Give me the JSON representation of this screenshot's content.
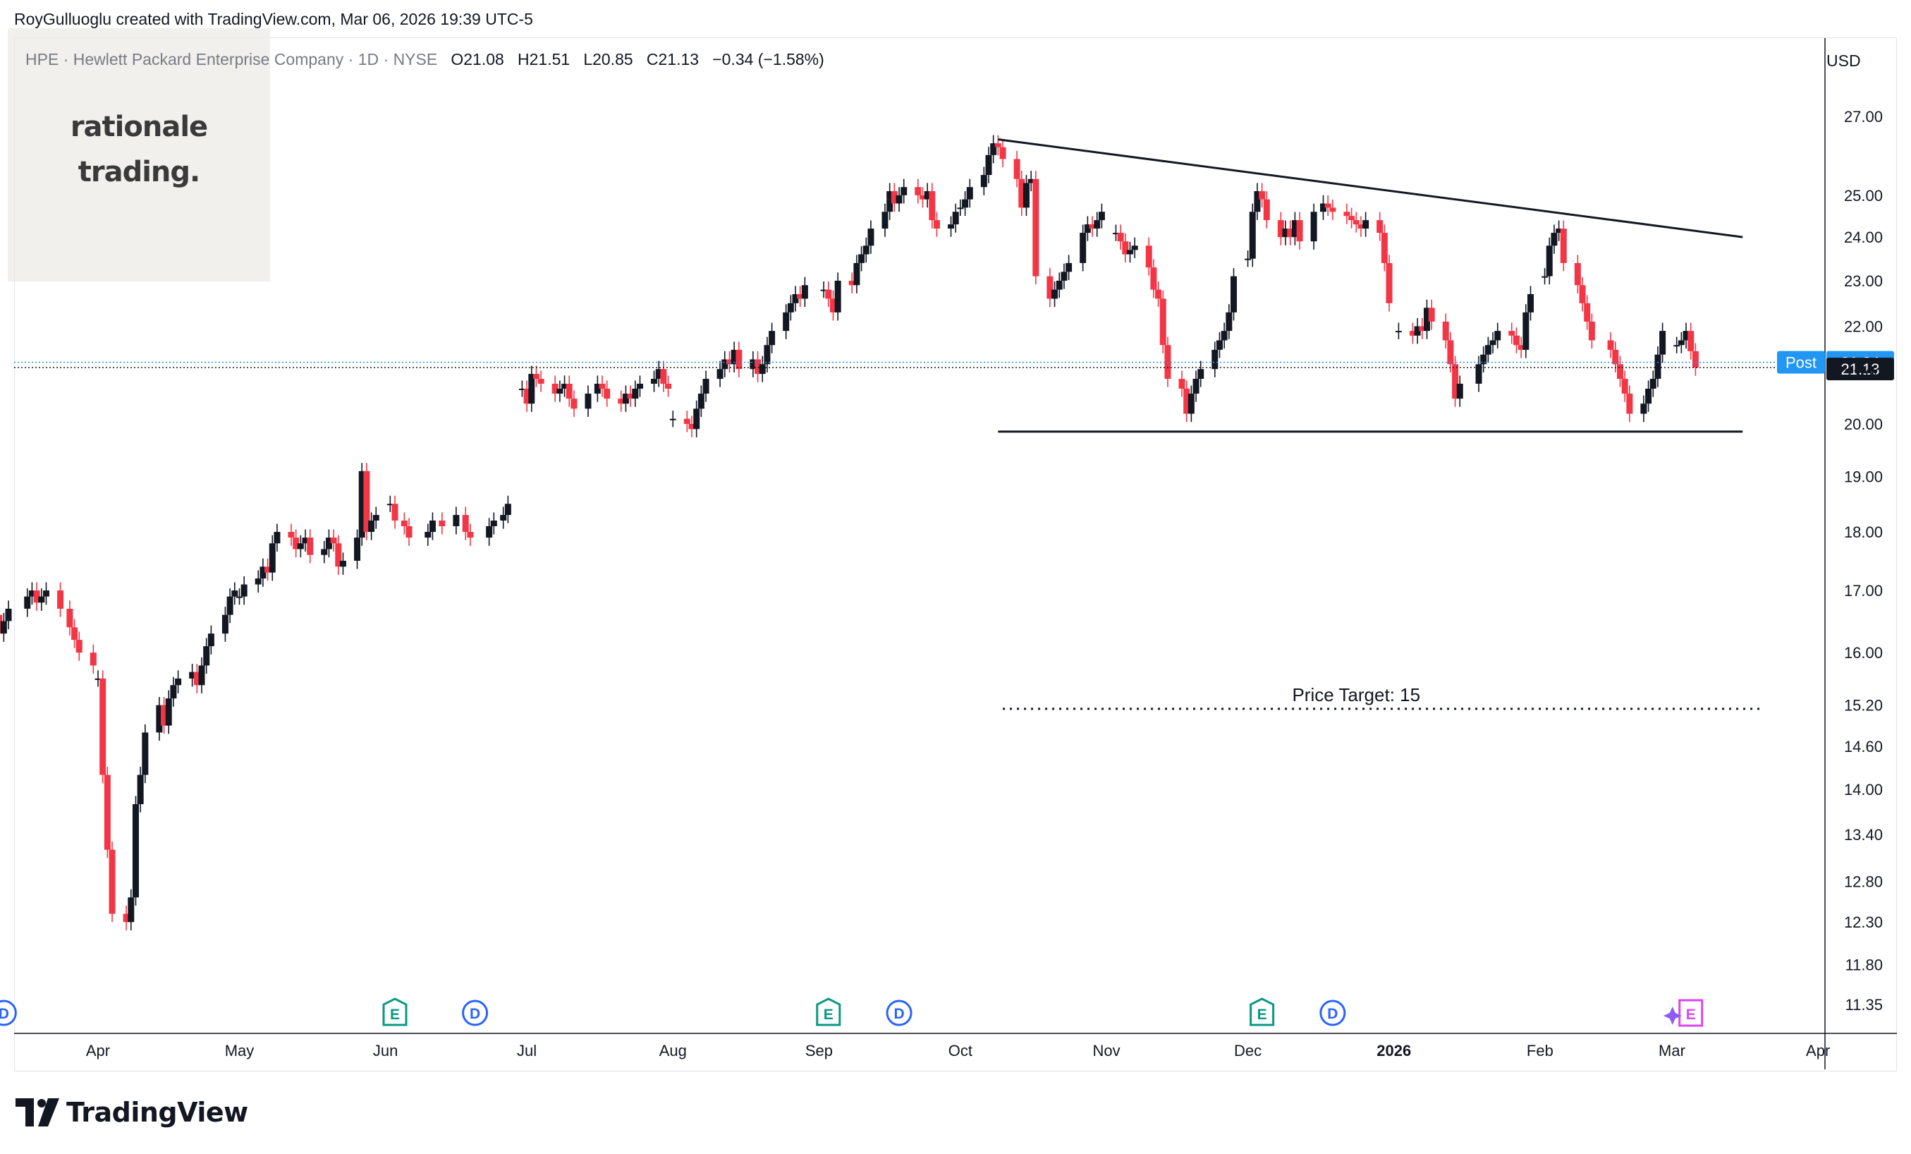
{
  "attribution": "RoyGulluoglu created with TradingView.com, Mar 06, 2026 19:39 UTC-5",
  "watermark": {
    "line1": "rationale",
    "line2": "trading."
  },
  "footer": {
    "brand": "TradingView"
  },
  "colors": {
    "up": "#131722",
    "down": "#f23645",
    "post_label": "#2196f3",
    "last_label": "#131722",
    "grid": "#e0e3eb"
  },
  "chart_data": {
    "type": "candlestick",
    "symbol_line": {
      "symbol": "HPE",
      "name": "Hewlett Packard Enterprise Company",
      "interval": "1D",
      "exchange": "NYSE",
      "open": "O21.08",
      "high": "H21.51",
      "low": "L20.85",
      "close": "C21.13",
      "change": "−0.34 (−1.58%)"
    },
    "currency": "USD",
    "scale": "log",
    "y_ticks": [
      "27.00",
      "25.00",
      "24.00",
      "23.00",
      "22.00",
      "21.00",
      "20.00",
      "19.00",
      "18.00",
      "17.00",
      "16.00",
      "15.20",
      "14.60",
      "14.00",
      "13.40",
      "12.80",
      "12.30",
      "11.80",
      "11.35"
    ],
    "x_ticks": [
      "Apr",
      "May",
      "Jun",
      "Jul",
      "Aug",
      "Sep",
      "Oct",
      "Nov",
      "Dec",
      "2026",
      "Feb",
      "Mar",
      "Apr"
    ],
    "post_label": "Post",
    "post_price": "21.24",
    "last_price": "21.13",
    "annotation": "Price Target: 15",
    "price_target": 15,
    "trendlines": [
      {
        "name": "descending-resistance",
        "start": [
          "2025-10-09",
          26.4
        ],
        "end": [
          "2026-03-16",
          24.0
        ]
      },
      {
        "name": "horizontal-support",
        "start": [
          "2025-10-09",
          19.85
        ],
        "end": [
          "2026-03-16",
          19.85
        ]
      }
    ],
    "event_markers": [
      {
        "type": "D",
        "date": "2025-03-12"
      },
      {
        "type": "E",
        "date": "2025-06-03"
      },
      {
        "type": "D",
        "date": "2025-06-20"
      },
      {
        "type": "E",
        "date": "2025-09-03"
      },
      {
        "type": "D",
        "date": "2025-09-18"
      },
      {
        "type": "E",
        "date": "2025-12-04"
      },
      {
        "type": "D",
        "date": "2025-12-19"
      },
      {
        "type": "E",
        "date": "2026-03-05"
      }
    ],
    "segments": [
      {
        "start": "2025-03-10",
        "end": "2025-03-31",
        "prices": [
          16.6,
          16.3,
          16.5,
          16.7,
          16.9,
          17.0,
          16.8,
          16.9,
          17.0,
          16.7,
          16.4,
          16.2,
          16.0,
          15.8
        ]
      },
      {
        "start": "2025-04-01",
        "end": "2025-04-30",
        "prices": [
          15.6,
          14.2,
          13.2,
          12.4,
          12.3,
          12.6,
          13.8,
          14.2,
          14.8,
          15.2,
          14.9,
          15.3,
          15.5,
          15.6,
          15.7,
          15.5,
          15.8,
          16.1,
          16.3,
          16.6,
          16.9,
          17.0
        ]
      },
      {
        "start": "2025-05-01",
        "end": "2025-05-30",
        "prices": [
          16.9,
          17.1,
          17.2,
          17.4,
          17.3,
          17.8,
          18.0,
          17.9,
          17.7,
          17.8,
          17.9,
          17.6,
          17.7,
          17.9,
          17.8,
          17.4,
          17.5,
          17.9,
          19.1,
          18.0,
          18.2,
          18.3
        ]
      },
      {
        "start": "2025-06-02",
        "end": "2025-06-27",
        "prices": [
          18.5,
          18.2,
          18.1,
          17.9,
          18.0,
          18.2,
          18.1,
          18.3,
          18.0,
          17.9,
          18.1,
          18.2,
          18.3,
          18.5
        ]
      },
      {
        "start": "2025-06-30",
        "end": "2025-07-31",
        "prices": [
          20.7,
          20.4,
          21.0,
          20.9,
          20.8,
          20.6,
          20.7,
          20.8,
          20.5,
          20.3,
          20.6,
          20.8,
          20.7,
          20.5,
          20.4,
          20.6,
          20.5,
          20.7,
          20.8,
          20.9,
          21.1,
          20.8,
          20.7
        ]
      },
      {
        "start": "2025-08-01",
        "end": "2025-08-29",
        "prices": [
          20.1,
          20.0,
          19.9,
          20.3,
          20.6,
          20.9,
          21.1,
          21.3,
          21.2,
          21.5,
          21.1,
          21.3,
          21.0,
          21.2,
          21.6,
          21.9,
          22.3,
          22.5,
          22.7,
          22.6,
          22.9
        ]
      },
      {
        "start": "2025-09-02",
        "end": "2025-09-30",
        "prices": [
          22.8,
          22.6,
          22.3,
          23.0,
          22.9,
          23.4,
          23.6,
          23.8,
          24.2,
          24.6,
          24.9,
          25.1,
          24.8,
          25.0,
          25.2,
          25.0,
          24.9,
          25.1,
          24.4,
          24.2,
          24.3,
          24.6
        ]
      },
      {
        "start": "2025-10-01",
        "end": "2025-10-31",
        "prices": [
          24.7,
          24.9,
          25.2,
          25.5,
          26.0,
          26.3,
          26.2,
          25.9,
          25.4,
          24.7,
          25.3,
          25.4,
          23.1,
          22.6,
          22.8,
          23.0,
          23.2,
          23.4,
          24.1,
          24.3,
          24.2,
          24.4,
          24.6
        ]
      },
      {
        "start": "2025-11-03",
        "end": "2025-11-28",
        "prices": [
          24.1,
          23.9,
          23.6,
          23.7,
          23.8,
          23.3,
          22.8,
          22.6,
          21.6,
          20.9,
          20.7,
          20.2,
          20.6,
          20.9,
          21.1,
          21.5,
          21.7,
          21.9,
          22.3,
          23.1
        ]
      },
      {
        "start": "2025-12-01",
        "end": "2025-12-31",
        "prices": [
          23.5,
          24.6,
          25.1,
          24.9,
          24.4,
          24.0,
          24.2,
          24.0,
          24.4,
          23.9,
          24.6,
          24.8,
          24.7,
          24.6,
          24.5,
          24.4,
          24.3,
          24.2,
          24.4,
          24.1,
          23.4,
          22.5
        ]
      },
      {
        "start": "2026-01-02",
        "end": "2026-01-30",
        "prices": [
          21.9,
          21.8,
          22.0,
          21.9,
          22.4,
          22.1,
          21.7,
          21.2,
          20.5,
          20.8,
          21.2,
          21.4,
          21.6,
          21.7,
          21.9,
          21.8,
          21.6,
          21.5,
          22.3,
          22.7
        ]
      },
      {
        "start": "2026-02-02",
        "end": "2026-02-27",
        "prices": [
          23.1,
          23.8,
          24.1,
          24.2,
          23.4,
          22.9,
          22.5,
          22.1,
          21.7,
          21.5,
          21.2,
          20.9,
          20.6,
          20.2,
          20.4,
          20.7,
          20.9,
          21.4,
          21.9
        ]
      },
      {
        "start": "2026-03-02",
        "end": "2026-03-06",
        "prices": [
          21.6,
          21.7,
          21.9,
          21.47,
          21.13
        ]
      }
    ]
  }
}
